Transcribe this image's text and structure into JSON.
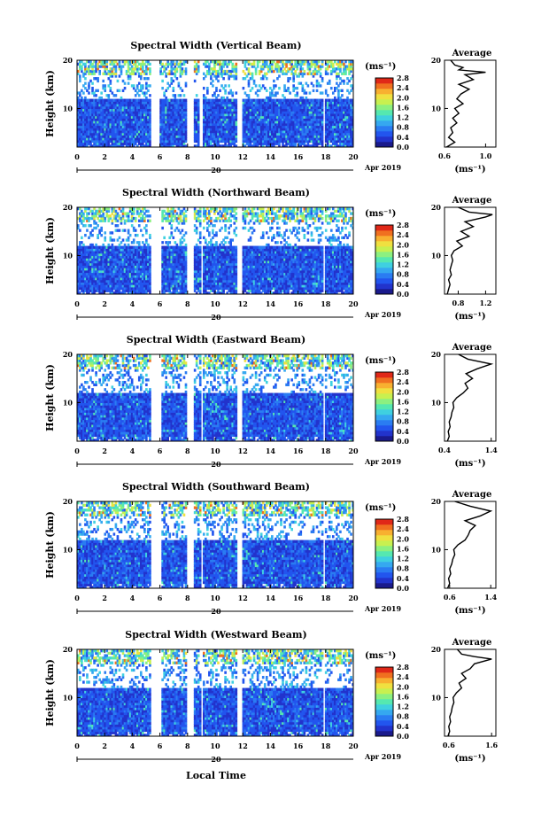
{
  "figure": {
    "x_axis_label": "Local Time",
    "month_label": "Apr 2019",
    "day_label": "20",
    "y_axis_label": "Height (km)",
    "units": "(ms⁻¹)",
    "average_title": "Average",
    "colorbar_ticks": [
      "0.0",
      "0.4",
      "0.8",
      "1.2",
      "1.6",
      "2.0",
      "2.4",
      "2.8"
    ],
    "colormap": [
      "#1a1a8c",
      "#2233cc",
      "#2255ee",
      "#2a7cf2",
      "#35a8f0",
      "#3fd0e0",
      "#55e8b0",
      "#8cf080",
      "#c8f050",
      "#f0e040",
      "#f8b030",
      "#f07020",
      "#e02818"
    ]
  },
  "chart_data": [
    {
      "type": "heatmap",
      "title": "Spectral Width (Vertical Beam)",
      "xlabel": "Local Time",
      "ylabel": "Height (km)",
      "xlim": [
        0,
        20
      ],
      "ylim": [
        2,
        20
      ],
      "x_ticks": [
        "0",
        "2",
        "4",
        "6",
        "8",
        "10",
        "12",
        "14",
        "16",
        "18",
        "20"
      ],
      "y_ticks": [
        "10",
        "20"
      ],
      "gaps_hours": [
        [
          5.3,
          5.9
        ],
        [
          7.8,
          8.4
        ],
        [
          8.8,
          9.1
        ],
        [
          11.5,
          11.9
        ],
        [
          17.7,
          17.9
        ]
      ],
      "average_profile": {
        "xlabel": "(ms⁻¹)",
        "xlim": [
          0.6,
          1.1
        ],
        "x_ticks": [
          "0.6",
          "1.0"
        ],
        "y_ticks": [
          "10",
          "20"
        ],
        "heights_km": [
          2,
          3,
          4,
          5,
          6,
          7,
          8,
          9,
          10,
          11,
          12,
          13,
          14,
          15,
          16,
          17,
          17.5,
          18,
          18.5,
          19,
          20
        ],
        "values": [
          0.62,
          0.7,
          0.64,
          0.68,
          0.66,
          0.72,
          0.68,
          0.74,
          0.7,
          0.78,
          0.72,
          0.76,
          0.84,
          0.74,
          0.88,
          0.8,
          1.0,
          0.74,
          0.78,
          0.7,
          0.66
        ]
      }
    },
    {
      "type": "heatmap",
      "title": "Spectral Width (Northward Beam)",
      "xlabel": "Local Time",
      "ylabel": "Height (km)",
      "xlim": [
        0,
        20
      ],
      "ylim": [
        2,
        20
      ],
      "x_ticks": [
        "0",
        "2",
        "4",
        "6",
        "8",
        "10",
        "12",
        "14",
        "16",
        "18",
        "20"
      ],
      "y_ticks": [
        "10",
        "20"
      ],
      "gaps_hours": [
        [
          5.3,
          6.0
        ],
        [
          7.8,
          8.4
        ],
        [
          8.9,
          9.1
        ],
        [
          11.5,
          11.9
        ],
        [
          17.7,
          17.9
        ]
      ],
      "average_profile": {
        "xlabel": "(ms⁻¹)",
        "xlim": [
          0.6,
          1.35
        ],
        "x_ticks": [
          "0.8",
          "1.2"
        ],
        "y_ticks": [
          "10",
          "20"
        ],
        "heights_km": [
          2,
          3,
          4,
          5,
          6,
          7,
          8,
          9,
          10,
          11,
          12,
          13,
          14,
          15,
          16,
          17,
          18,
          18.5,
          19,
          20
        ],
        "values": [
          0.64,
          0.66,
          0.68,
          0.66,
          0.7,
          0.68,
          0.7,
          0.72,
          0.7,
          0.74,
          0.86,
          0.78,
          0.96,
          0.84,
          1.02,
          0.9,
          1.2,
          1.3,
          0.96,
          0.8
        ]
      }
    },
    {
      "type": "heatmap",
      "title": "Spectral Width (Eastward Beam)",
      "xlabel": "Local Time",
      "ylabel": "Height (km)",
      "xlim": [
        0,
        20
      ],
      "ylim": [
        2,
        20
      ],
      "x_ticks": [
        "0",
        "2",
        "4",
        "6",
        "8",
        "10",
        "12",
        "14",
        "16",
        "18",
        "20"
      ],
      "y_ticks": [
        "10",
        "20"
      ],
      "gaps_hours": [
        [
          5.3,
          6.0
        ],
        [
          7.8,
          8.4
        ],
        [
          8.9,
          9.1
        ],
        [
          11.5,
          11.9
        ],
        [
          17.7,
          17.9
        ]
      ],
      "average_profile": {
        "xlabel": "(ms⁻¹)",
        "xlim": [
          0.4,
          1.5
        ],
        "x_ticks": [
          "0.4",
          "1.4"
        ],
        "y_ticks": [
          "10",
          "20"
        ],
        "heights_km": [
          2,
          3,
          4,
          5,
          6,
          7,
          8,
          9,
          10,
          11,
          12,
          13,
          14,
          15,
          16,
          17,
          18,
          19,
          20
        ],
        "values": [
          0.46,
          0.5,
          0.48,
          0.52,
          0.5,
          0.54,
          0.56,
          0.6,
          0.58,
          0.66,
          0.8,
          0.9,
          0.84,
          1.0,
          0.86,
          1.1,
          1.4,
          0.9,
          0.7
        ]
      }
    },
    {
      "type": "heatmap",
      "title": "Spectral Width (Southward Beam)",
      "xlabel": "Local Time",
      "ylabel": "Height (km)",
      "xlim": [
        0,
        20
      ],
      "ylim": [
        2,
        20
      ],
      "x_ticks": [
        "0",
        "2",
        "4",
        "6",
        "8",
        "10",
        "12",
        "14",
        "16",
        "18",
        "20"
      ],
      "y_ticks": [
        "10",
        "20"
      ],
      "gaps_hours": [
        [
          5.3,
          6.0
        ],
        [
          7.8,
          8.4
        ],
        [
          8.9,
          9.1
        ],
        [
          11.5,
          11.9
        ],
        [
          17.7,
          17.9
        ]
      ],
      "average_profile": {
        "xlabel": "(ms⁻¹)",
        "xlim": [
          0.5,
          1.5
        ],
        "x_ticks": [
          "0.6",
          "1.4"
        ],
        "y_ticks": [
          "10",
          "20"
        ],
        "heights_km": [
          2,
          3,
          4,
          5,
          6,
          7,
          8,
          9,
          10,
          11,
          12,
          13,
          14,
          15,
          16,
          17,
          18,
          19,
          20
        ],
        "values": [
          0.56,
          0.6,
          0.58,
          0.62,
          0.6,
          0.64,
          0.66,
          0.7,
          0.68,
          0.76,
          0.9,
          0.96,
          1.0,
          1.1,
          0.9,
          1.2,
          1.4,
          1.0,
          0.7
        ]
      }
    },
    {
      "type": "heatmap",
      "title": "Spectral Width (Westward Beam)",
      "xlabel": "Local Time",
      "ylabel": "Height (km)",
      "xlim": [
        0,
        20
      ],
      "ylim": [
        2,
        20
      ],
      "x_ticks": [
        "0",
        "2",
        "4",
        "6",
        "8",
        "10",
        "12",
        "14",
        "16",
        "18",
        "20"
      ],
      "y_ticks": [
        "10",
        "20"
      ],
      "gaps_hours": [
        [
          5.3,
          6.0
        ],
        [
          7.8,
          8.4
        ],
        [
          8.9,
          9.1
        ],
        [
          11.5,
          11.9
        ],
        [
          17.7,
          17.9
        ]
      ],
      "average_profile": {
        "xlabel": "(ms⁻¹)",
        "xlim": [
          0.5,
          1.7
        ],
        "x_ticks": [
          "0.6",
          "1.6"
        ],
        "y_ticks": [
          "10",
          "20"
        ],
        "heights_km": [
          2,
          3,
          4,
          5,
          6,
          7,
          8,
          9,
          10,
          11,
          12,
          13,
          14,
          15,
          16,
          17,
          18,
          18.5,
          19,
          20
        ],
        "values": [
          0.58,
          0.62,
          0.6,
          0.64,
          0.62,
          0.66,
          0.68,
          0.72,
          0.7,
          0.78,
          0.9,
          0.84,
          1.0,
          0.9,
          1.1,
          1.2,
          1.6,
          1.2,
          0.9,
          0.8
        ]
      }
    }
  ]
}
